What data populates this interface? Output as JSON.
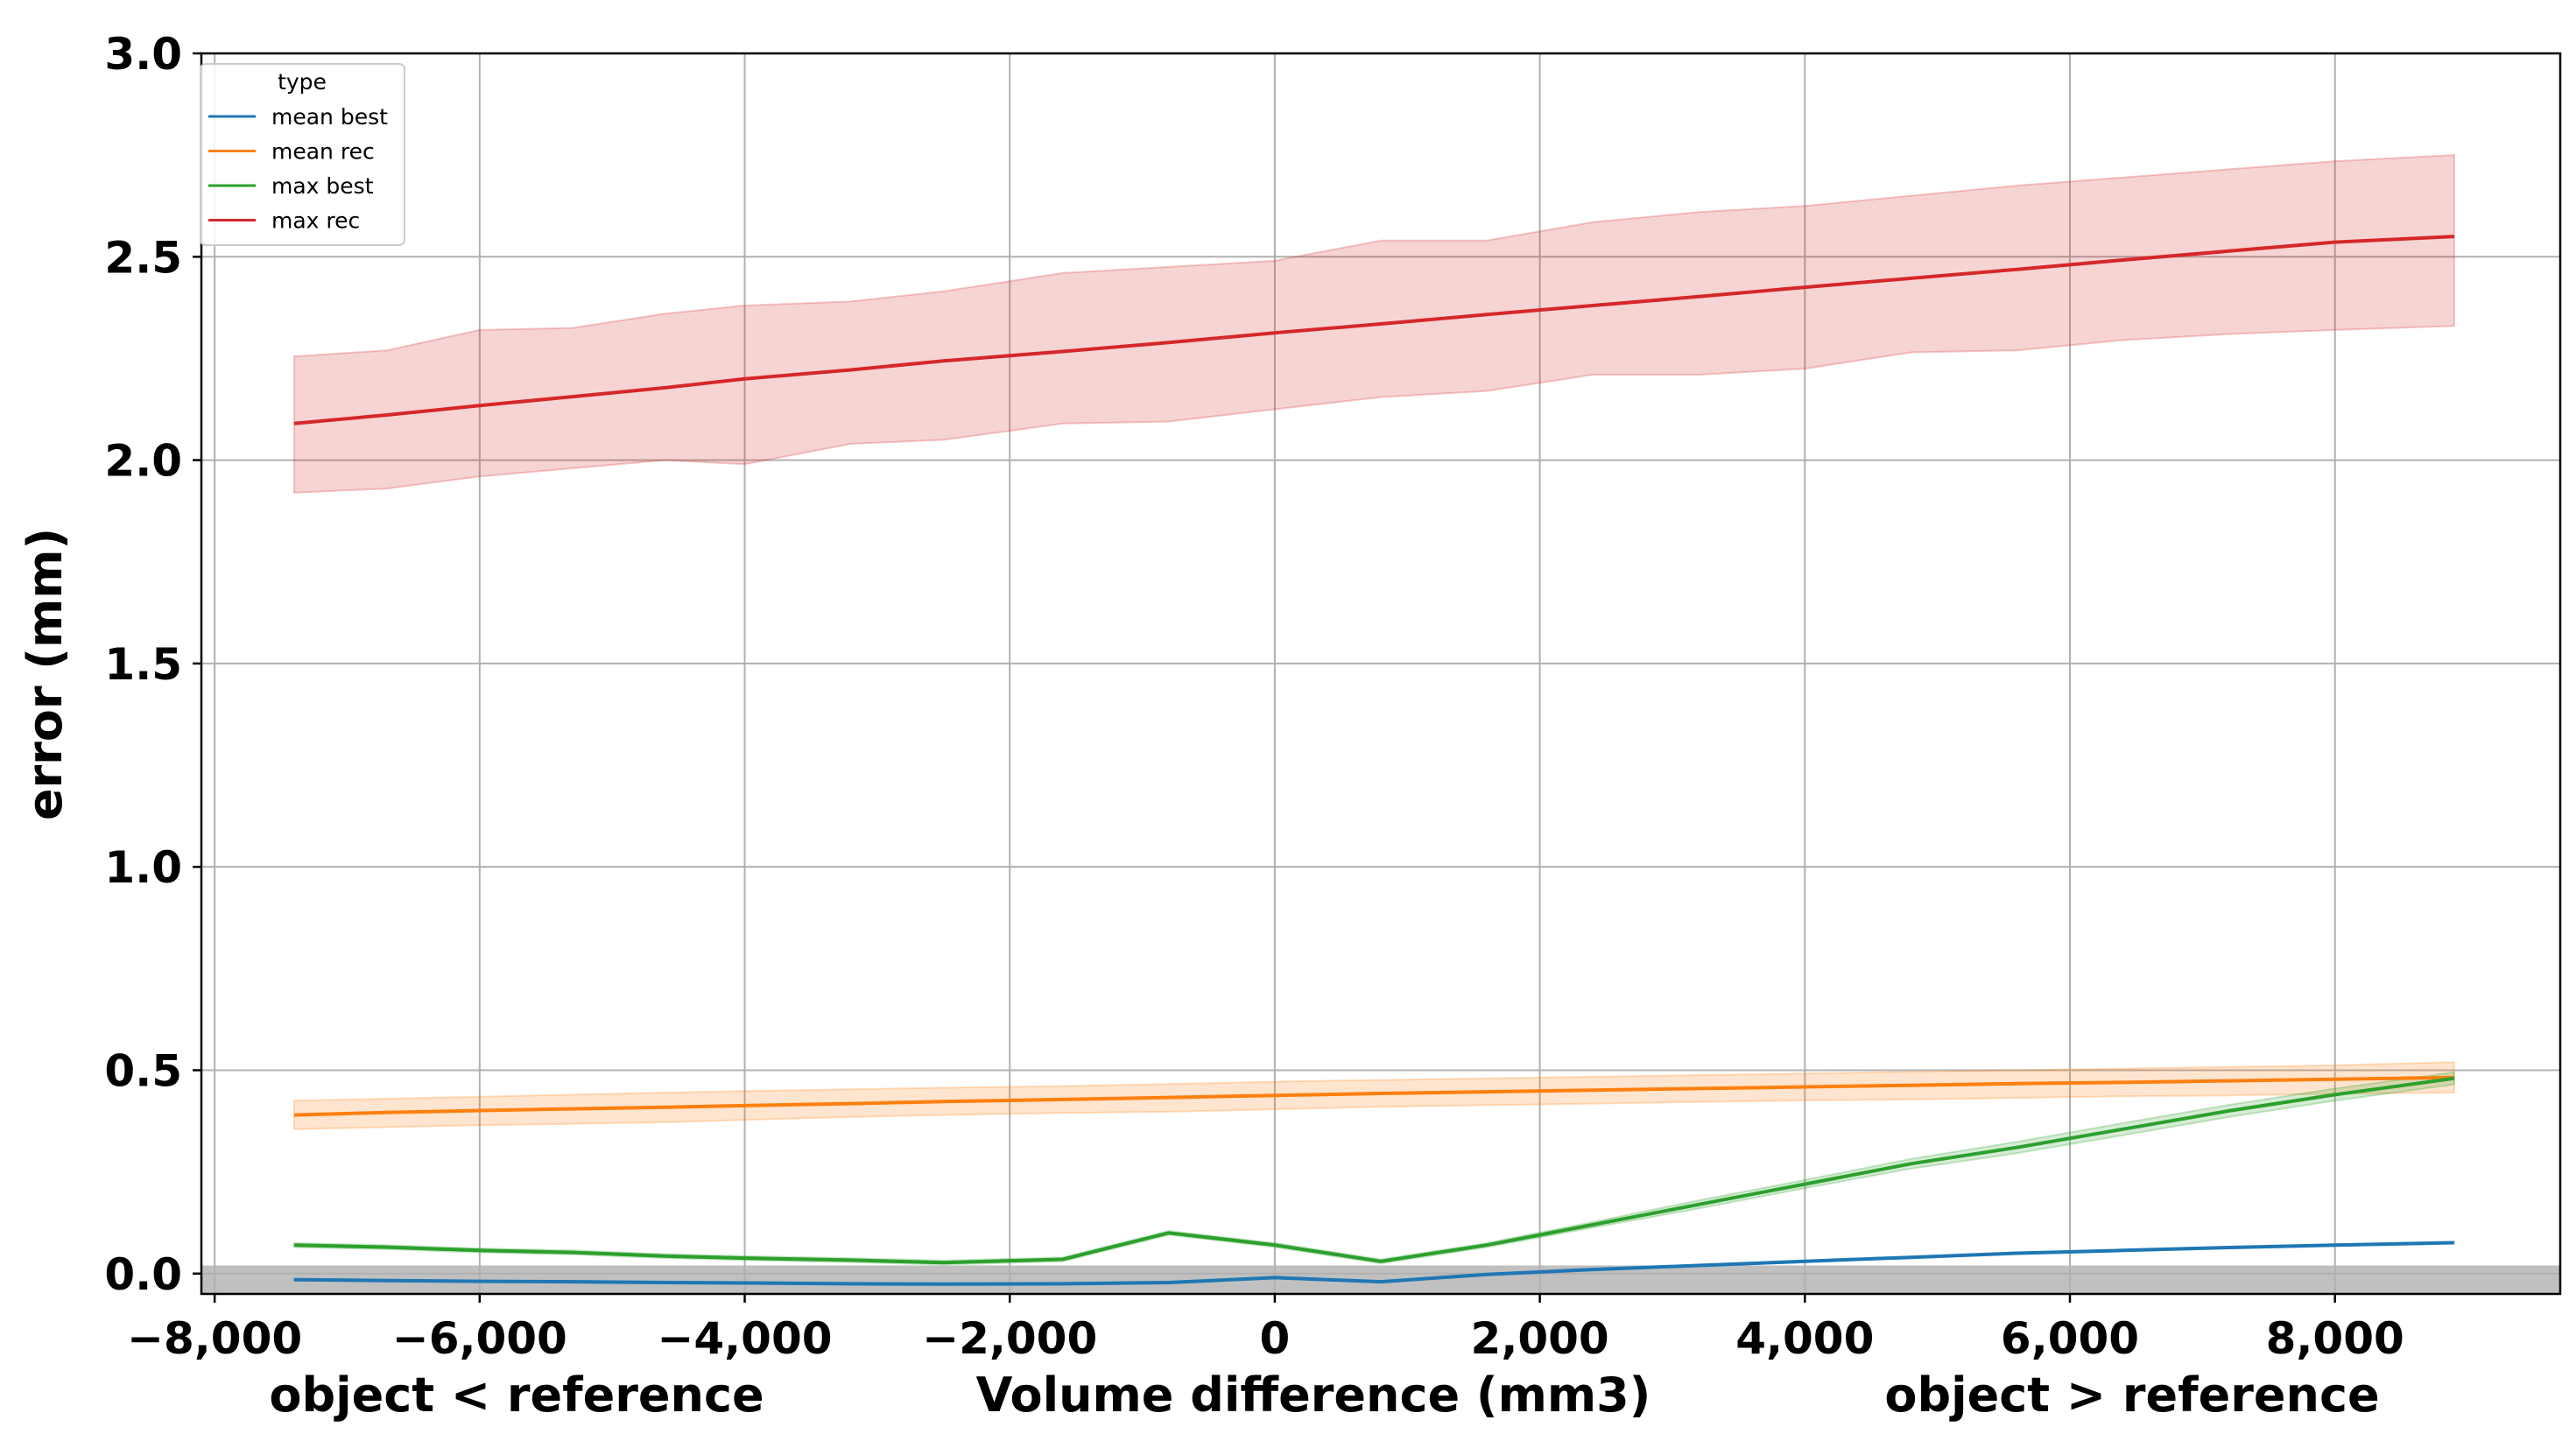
{
  "chart_data": {
    "type": "line",
    "xlabel": "Volume difference (mm3)",
    "xlabel_left": "object < reference",
    "xlabel_right": "object > reference",
    "ylabel": "error (mm)",
    "xlim": [
      -8100,
      9700
    ],
    "ylim": [
      -0.05,
      3.0
    ],
    "xticks": [
      -8000,
      -6000,
      -4000,
      -2000,
      0,
      2000,
      4000,
      6000,
      8000
    ],
    "xtick_labels": [
      "−8,000",
      "−6,000",
      "−4,000",
      "−2,000",
      "0",
      "2,000",
      "4,000",
      "6,000",
      "8,000"
    ],
    "yticks": [
      0.0,
      0.5,
      1.0,
      1.5,
      2.0,
      2.5,
      3.0
    ],
    "ytick_labels": [
      "0.0",
      "0.5",
      "1.0",
      "1.5",
      "2.0",
      "2.5",
      "3.0"
    ],
    "grid": true,
    "shaded_band": {
      "y_from": -0.05,
      "y_to": 0.02,
      "color": "#c0c0c0"
    },
    "legend": {
      "title": "type",
      "position": "top-left"
    },
    "series": [
      {
        "name": "mean best",
        "color": "#1f77b4",
        "x": [
          -7400,
          -6700,
          -6000,
          -5300,
          -4600,
          -4000,
          -3200,
          -2500,
          -1600,
          -800,
          0,
          800,
          1600,
          2400,
          3200,
          4000,
          4800,
          5600,
          6400,
          7200,
          8000,
          8900
        ],
        "y": [
          -0.015,
          -0.017,
          -0.019,
          -0.02,
          -0.022,
          -0.023,
          -0.025,
          -0.026,
          -0.025,
          -0.022,
          -0.01,
          -0.02,
          -0.002,
          0.01,
          0.02,
          0.03,
          0.04,
          0.05,
          0.057,
          0.064,
          0.07,
          0.076
        ],
        "lower": [
          -0.017,
          -0.019,
          -0.021,
          -0.022,
          -0.024,
          -0.025,
          -0.027,
          -0.028,
          -0.027,
          -0.024,
          -0.012,
          -0.022,
          -0.004,
          0.008,
          0.018,
          0.028,
          0.038,
          0.048,
          0.055,
          0.062,
          0.068,
          0.074
        ],
        "upper": [
          -0.013,
          -0.015,
          -0.017,
          -0.018,
          -0.02,
          -0.021,
          -0.023,
          -0.024,
          -0.023,
          -0.02,
          -0.008,
          -0.018,
          0.0,
          0.012,
          0.022,
          0.032,
          0.042,
          0.052,
          0.059,
          0.066,
          0.072,
          0.078
        ]
      },
      {
        "name": "mean rec",
        "color": "#ff7f0e",
        "x": [
          -7400,
          -6700,
          -6000,
          -5300,
          -4600,
          -4000,
          -3200,
          -2500,
          -1600,
          -800,
          0,
          800,
          1600,
          2400,
          3200,
          4000,
          4800,
          5600,
          6400,
          7200,
          8000,
          8900
        ],
        "y": [
          0.39,
          0.396,
          0.401,
          0.405,
          0.409,
          0.413,
          0.418,
          0.423,
          0.428,
          0.433,
          0.438,
          0.443,
          0.447,
          0.451,
          0.455,
          0.459,
          0.463,
          0.467,
          0.47,
          0.474,
          0.478,
          0.482
        ],
        "lower": [
          0.355,
          0.36,
          0.365,
          0.368,
          0.372,
          0.378,
          0.385,
          0.39,
          0.395,
          0.398,
          0.404,
          0.41,
          0.414,
          0.418,
          0.422,
          0.426,
          0.428,
          0.432,
          0.436,
          0.438,
          0.442,
          0.445
        ],
        "upper": [
          0.425,
          0.43,
          0.435,
          0.44,
          0.445,
          0.449,
          0.453,
          0.457,
          0.461,
          0.466,
          0.472,
          0.476,
          0.48,
          0.484,
          0.488,
          0.492,
          0.496,
          0.5,
          0.504,
          0.508,
          0.512,
          0.52
        ]
      },
      {
        "name": "max best",
        "color": "#2ca02c",
        "x": [
          -7400,
          -6700,
          -6000,
          -5300,
          -4600,
          -4000,
          -3200,
          -2500,
          -1600,
          -800,
          0,
          800,
          1600,
          2400,
          3200,
          4000,
          4800,
          5600,
          6400,
          7200,
          8000,
          8900
        ],
        "y": [
          0.07,
          0.065,
          0.057,
          0.052,
          0.043,
          0.038,
          0.033,
          0.027,
          0.035,
          0.1,
          0.07,
          0.03,
          0.07,
          0.12,
          0.17,
          0.22,
          0.27,
          0.31,
          0.355,
          0.4,
          0.44,
          0.48
        ],
        "lower": [
          0.065,
          0.06,
          0.052,
          0.047,
          0.038,
          0.033,
          0.028,
          0.022,
          0.03,
          0.095,
          0.065,
          0.025,
          0.065,
          0.113,
          0.16,
          0.21,
          0.258,
          0.296,
          0.34,
          0.385,
          0.425,
          0.465
        ],
        "upper": [
          0.075,
          0.07,
          0.062,
          0.057,
          0.048,
          0.043,
          0.038,
          0.032,
          0.04,
          0.105,
          0.075,
          0.035,
          0.075,
          0.127,
          0.18,
          0.23,
          0.282,
          0.324,
          0.37,
          0.415,
          0.455,
          0.495
        ]
      },
      {
        "name": "max rec",
        "color": "#d62728",
        "x": [
          -7400,
          -6700,
          -6000,
          -5300,
          -4600,
          -4000,
          -3200,
          -2500,
          -1600,
          -800,
          0,
          800,
          1600,
          2400,
          3200,
          4000,
          4800,
          5600,
          6400,
          7200,
          8000,
          8900
        ],
        "y": [
          2.09,
          2.111,
          2.134,
          2.156,
          2.178,
          2.2,
          2.222,
          2.244,
          2.267,
          2.289,
          2.313,
          2.335,
          2.358,
          2.38,
          2.402,
          2.425,
          2.447,
          2.469,
          2.492,
          2.514,
          2.536,
          2.55
        ],
        "lower": [
          1.92,
          1.93,
          1.96,
          1.98,
          2.0,
          1.99,
          2.04,
          2.05,
          2.09,
          2.095,
          2.125,
          2.155,
          2.17,
          2.21,
          2.21,
          2.225,
          2.265,
          2.27,
          2.295,
          2.31,
          2.32,
          2.33
        ],
        "upper": [
          2.255,
          2.27,
          2.32,
          2.325,
          2.36,
          2.38,
          2.39,
          2.415,
          2.46,
          2.475,
          2.49,
          2.54,
          2.54,
          2.585,
          2.61,
          2.625,
          2.65,
          2.675,
          2.695,
          2.715,
          2.735,
          2.75
        ]
      }
    ]
  }
}
